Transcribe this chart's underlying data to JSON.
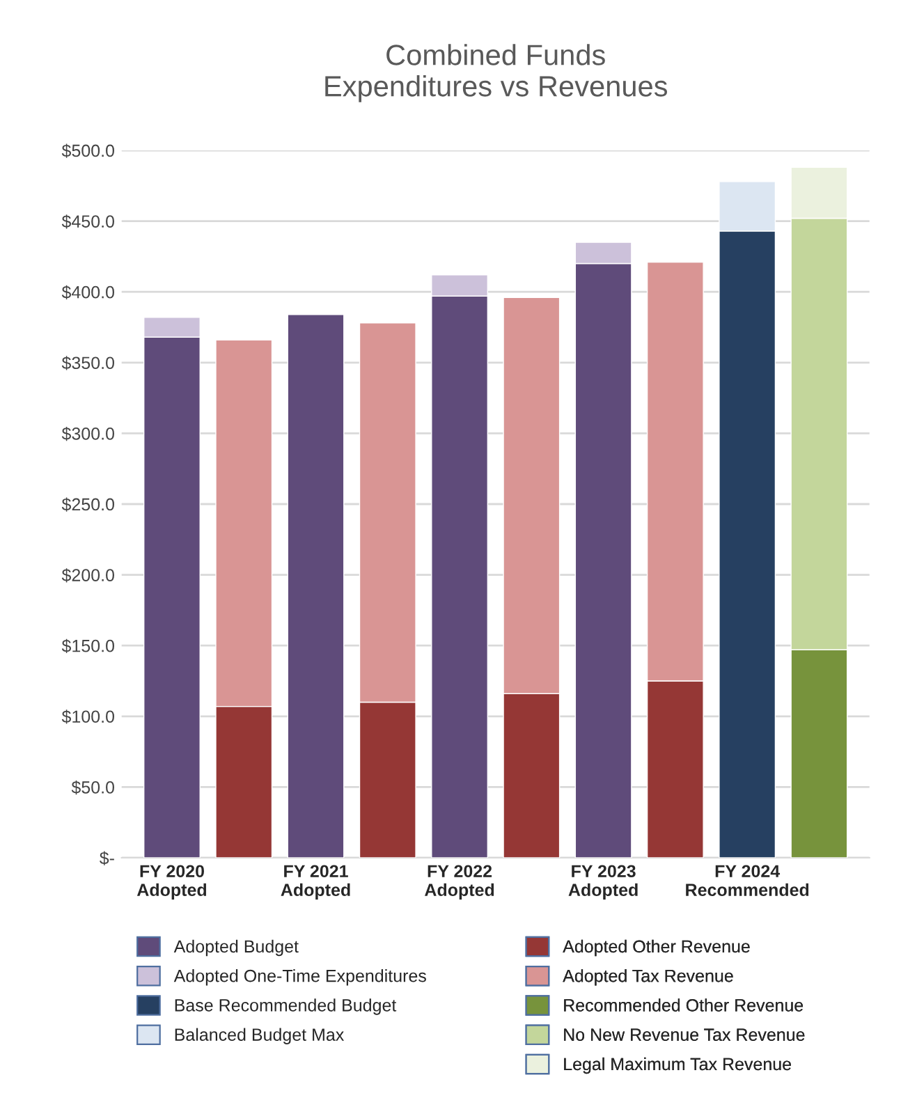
{
  "chart_data": {
    "type": "bar",
    "title": "Combined Funds\nExpenditures vs Revenues",
    "categories": [
      "FY 2020\nAdopted",
      null,
      "FY 2021\nAdopted",
      null,
      "FY 2022\nAdopted",
      null,
      "FY 2023\nAdopted",
      null,
      "FY 2024\nRecommended",
      null
    ],
    "stacked": true,
    "series": [
      {
        "name": "Adopted Budget",
        "color": "#5f4b7a",
        "values": [
          368,
          null,
          384,
          null,
          397,
          null,
          420,
          null,
          null,
          null
        ]
      },
      {
        "name": "Adopted One-Time Expenditures",
        "color": "#ccc1da",
        "values": [
          14,
          null,
          null,
          null,
          15,
          null,
          15,
          null,
          null,
          null
        ]
      },
      {
        "name": "Base Recommended Budget",
        "color": "#264061",
        "values": [
          null,
          null,
          null,
          null,
          null,
          null,
          null,
          null,
          443,
          null
        ]
      },
      {
        "name": "Balanced Budget Max",
        "color": "#dce6f2",
        "values": [
          null,
          null,
          null,
          null,
          null,
          null,
          null,
          null,
          35,
          null
        ]
      },
      {
        "name": "Adopted Other Revenue",
        "color": "#953735",
        "values": [
          null,
          107,
          null,
          110,
          null,
          116,
          null,
          125,
          null,
          null
        ]
      },
      {
        "name": "Adopted Tax Revenue",
        "color": "#d99594",
        "values": [
          null,
          259,
          null,
          268,
          null,
          280,
          null,
          296,
          null,
          null
        ]
      },
      {
        "name": "Recommended Other Revenue",
        "color": "#77933c",
        "values": [
          null,
          null,
          null,
          null,
          null,
          null,
          null,
          null,
          null,
          147
        ]
      },
      {
        "name": "No New Revenue Tax Revenue",
        "color": "#c3d69b",
        "values": [
          null,
          null,
          null,
          null,
          null,
          null,
          null,
          null,
          null,
          305
        ]
      },
      {
        "name": "Legal Maximum Tax Revenue",
        "color": "#ebf1de",
        "values": [
          null,
          null,
          null,
          null,
          null,
          null,
          null,
          null,
          null,
          36
        ]
      }
    ],
    "ylim": [
      0,
      500
    ],
    "yticks": [
      {
        "value": 0,
        "label": "$-"
      },
      {
        "value": 50,
        "label": "$50.0"
      },
      {
        "value": 100,
        "label": "$100.0"
      },
      {
        "value": 150,
        "label": "$150.0"
      },
      {
        "value": 200,
        "label": "$200.0"
      },
      {
        "value": 250,
        "label": "$250.0"
      },
      {
        "value": 300,
        "label": "$300.0"
      },
      {
        "value": 350,
        "label": "$350.0"
      },
      {
        "value": 400,
        "label": "$400.0"
      },
      {
        "value": 450,
        "label": "$450.0"
      },
      {
        "value": 500,
        "label": "$500.0"
      }
    ],
    "grid": "y",
    "legend": "bottom"
  }
}
